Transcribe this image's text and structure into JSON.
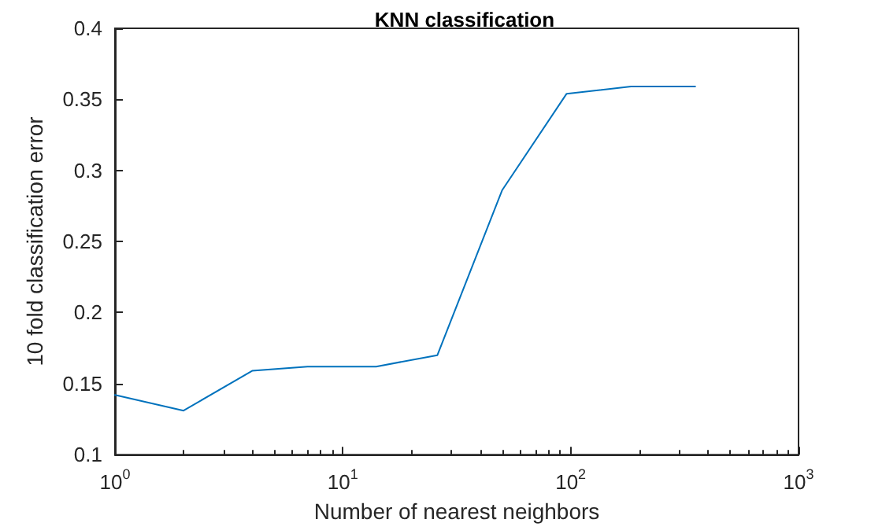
{
  "chart_data": {
    "type": "line",
    "title": "KNN classification",
    "xlabel": "Number of nearest neighbors",
    "ylabel": "10 fold classification error",
    "x": [
      1,
      2,
      4,
      7,
      14,
      26,
      50,
      96,
      184,
      352
    ],
    "series": [
      {
        "color": "#0072bd",
        "values": [
          0.142,
          0.131,
          0.159,
          0.162,
          0.162,
          0.17,
          0.286,
          0.354,
          0.359,
          0.359
        ]
      }
    ],
    "log": "x",
    "xlim": [
      1,
      1000
    ],
    "xticks": [
      {
        "value": 1,
        "label": "10$^{0}$"
      },
      {
        "value": 10,
        "label": "10$^{1}$"
      },
      {
        "value": 100,
        "label": "10$^{2}$"
      },
      {
        "value": 1000,
        "label": "10$^{3}$"
      }
    ],
    "ylim": [
      0.1,
      0.4
    ],
    "yticks": [
      0.1,
      0.15,
      0.2,
      0.25,
      0.3,
      0.35,
      0.4
    ],
    "grid": false,
    "marker": "none",
    "line_style": "solid"
  }
}
